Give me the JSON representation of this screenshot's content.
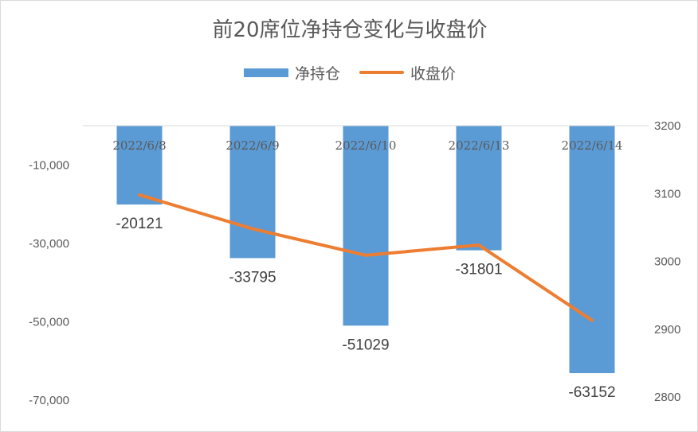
{
  "chart_data": {
    "type": "bar",
    "title": "前20席位净持仓变化与收盘价",
    "categories": [
      "2022/6/8",
      "2022/6/9",
      "2022/6/10",
      "2022/6/13",
      "2022/6/14"
    ],
    "series": [
      {
        "name": "净持仓",
        "type": "bar",
        "axis": "left",
        "color": "#5b9bd5",
        "values": [
          -20121,
          -33795,
          -51029,
          -31801,
          -63152
        ]
      },
      {
        "name": "收盘价",
        "type": "line",
        "axis": "right",
        "color": "#ed7d31",
        "values": [
          3098,
          3048,
          3009,
          3024,
          2913
        ]
      }
    ],
    "y_left": {
      "ylim": [
        -70000,
        0
      ],
      "ticks": [
        -10000,
        -30000,
        -50000,
        -70000
      ],
      "tick_labels": [
        "-10,000",
        "-30,000",
        "-50,000",
        "-70,000"
      ]
    },
    "y_right": {
      "ylim": [
        2800,
        3200
      ],
      "ticks": [
        3200,
        3100,
        3000,
        2900,
        2800
      ],
      "tick_labels": [
        "3200",
        "3100",
        "3000",
        "2900",
        "2800"
      ]
    },
    "data_labels": [
      "-20121",
      "-33795",
      "-51029",
      "-31801",
      "-63152"
    ],
    "legend": "top",
    "grid": false
  }
}
